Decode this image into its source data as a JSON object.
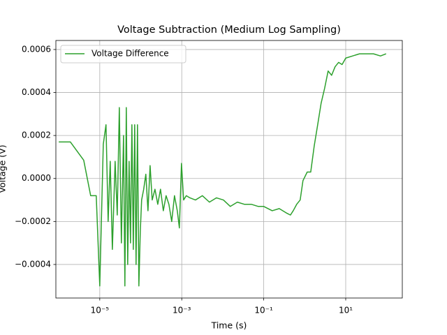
{
  "chart_data": {
    "type": "line",
    "title": "Voltage Subtraction (Medium Log Sampling)",
    "x_label": "Time (s)",
    "y_label": "Voltage (V)",
    "x_scale": "log",
    "grid": true,
    "legend_position": "upper left",
    "xlim": [
      8.5e-07,
      240
    ],
    "ylim": [
      -0.000556,
      0.000642
    ],
    "xticks": [
      {
        "value": 1e-05,
        "label": "10⁻⁵"
      },
      {
        "value": 0.001,
        "label": "10⁻³"
      },
      {
        "value": 0.1,
        "label": "10⁻¹"
      },
      {
        "value": 10,
        "label": "10¹"
      }
    ],
    "yticks": [
      {
        "value": -0.0004,
        "label": "−0.0004"
      },
      {
        "value": -0.0002,
        "label": "−0.0002"
      },
      {
        "value": 0,
        "label": "0.0000"
      },
      0.0002,
      0.0004,
      0.0006
    ],
    "series": [
      {
        "name": "Voltage Difference",
        "color": "#2ca02c",
        "x": [
          1e-06,
          1.92e-06,
          4.06e-06,
          6e-06,
          8.2e-06,
          1e-05,
          1.22e-05,
          1.42e-05,
          1.6e-05,
          1.8e-05,
          2.03e-05,
          2.37e-05,
          2.67e-05,
          3e-05,
          3.37e-05,
          3.8e-05,
          4.1e-05,
          4.44e-05,
          4.8e-05,
          5.2e-05,
          5.62e-05,
          6.08e-05,
          6.58e-05,
          7.11e-05,
          7.69e-05,
          8.32e-05,
          9e-05,
          9.73e-05,
          0.000105,
          0.000118,
          0.000133,
          0.00015,
          0.000169,
          0.00019,
          0.000222,
          0.00026,
          0.000303,
          0.000355,
          0.000415,
          0.000486,
          0.000569,
          0.000665,
          0.000778,
          0.000875,
          0.000985,
          0.00111,
          0.00129,
          0.00158,
          0.00216,
          0.00319,
          0.00473,
          0.007,
          0.0104,
          0.0153,
          0.0227,
          0.0336,
          0.0497,
          0.0736,
          0.1,
          0.161,
          0.239,
          0.354,
          0.448,
          0.524,
          0.637,
          0.774,
          0.906,
          1.15,
          1.4,
          1.7,
          2.07,
          2.51,
          3.06,
          3.72,
          4.53,
          5.51,
          6.7,
          8.15,
          10,
          14.7,
          21.7,
          32.2,
          47.6,
          70.5,
          96.6
        ],
        "values": [
          0.00017,
          0.00017,
          8.5e-05,
          -8e-05,
          -8e-05,
          -0.0005,
          0.00016,
          0.00025,
          -0.0002,
          8e-05,
          -0.00033,
          8e-05,
          -0.00017,
          0.00033,
          -0.0003,
          0.0002,
          -0.0005,
          0.00033,
          -0.0004,
          8e-05,
          -0.0003,
          0.00025,
          -0.00033,
          0.00025,
          -0.0004,
          0.00025,
          -0.0005,
          -0.00025,
          -0.0001,
          -5e-05,
          2e-05,
          -0.00015,
          6e-05,
          -0.0001,
          -5e-05,
          -0.00012,
          -5e-05,
          -0.00015,
          -8e-05,
          -0.00012,
          -0.0002,
          -8e-05,
          -0.00015,
          -0.00023,
          7e-05,
          -0.0001,
          -8e-05,
          -9e-05,
          -0.0001,
          -8e-05,
          -0.00011,
          -9e-05,
          -0.0001,
          -0.00013,
          -0.00011,
          -0.00012,
          -0.00012,
          -0.00013,
          -0.00013,
          -0.00015,
          -0.00014,
          -0.00016,
          -0.00017,
          -0.00015,
          -0.00012,
          -0.0001,
          -1e-05,
          3e-05,
          3e-05,
          0.00015,
          0.00025,
          0.00035,
          0.00042,
          0.0005,
          0.00048,
          0.00052,
          0.00054,
          0.00053,
          0.00056,
          0.00057,
          0.00058,
          0.00058,
          0.00058,
          0.00057,
          0.00058
        ]
      }
    ]
  }
}
